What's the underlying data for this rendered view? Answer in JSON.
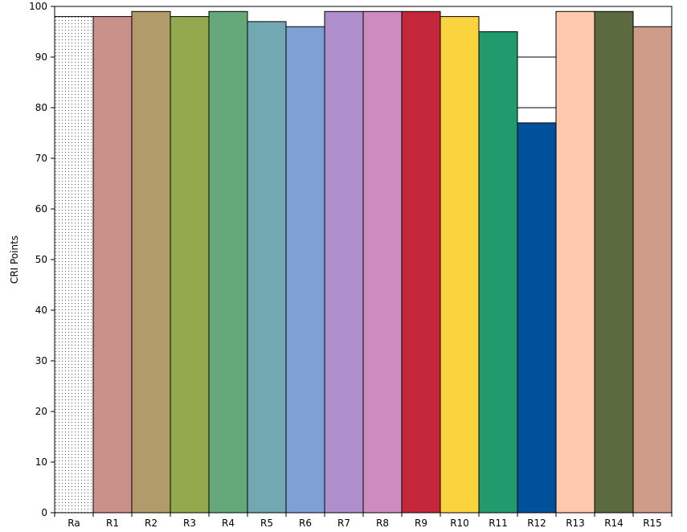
{
  "chart_data": {
    "type": "bar",
    "title": "",
    "xlabel": "",
    "ylabel": "CRI Points",
    "ylim": [
      0,
      100
    ],
    "yticks": [
      0,
      10,
      20,
      30,
      40,
      50,
      60,
      70,
      80,
      90,
      100
    ],
    "grid": true,
    "categories": [
      "Ra",
      "R1",
      "R2",
      "R3",
      "R4",
      "R5",
      "R6",
      "R7",
      "R8",
      "R9",
      "R10",
      "R11",
      "R12",
      "R13",
      "R14",
      "R15"
    ],
    "values": [
      98,
      98,
      99,
      98,
      99,
      97,
      96,
      99,
      99,
      99,
      98,
      95,
      77,
      99,
      99,
      96
    ],
    "colors": [
      "dotted-white",
      "#CA908A",
      "#B29B6A",
      "#94A84D",
      "#65A97A",
      "#72A8B2",
      "#7FA0D4",
      "#AE8FCC",
      "#CC8CC0",
      "#C4263A",
      "#FAD43F",
      "#219A6E",
      "#00519B",
      "#FEC9AD",
      "#5C6B3F",
      "#CE9C88"
    ]
  }
}
